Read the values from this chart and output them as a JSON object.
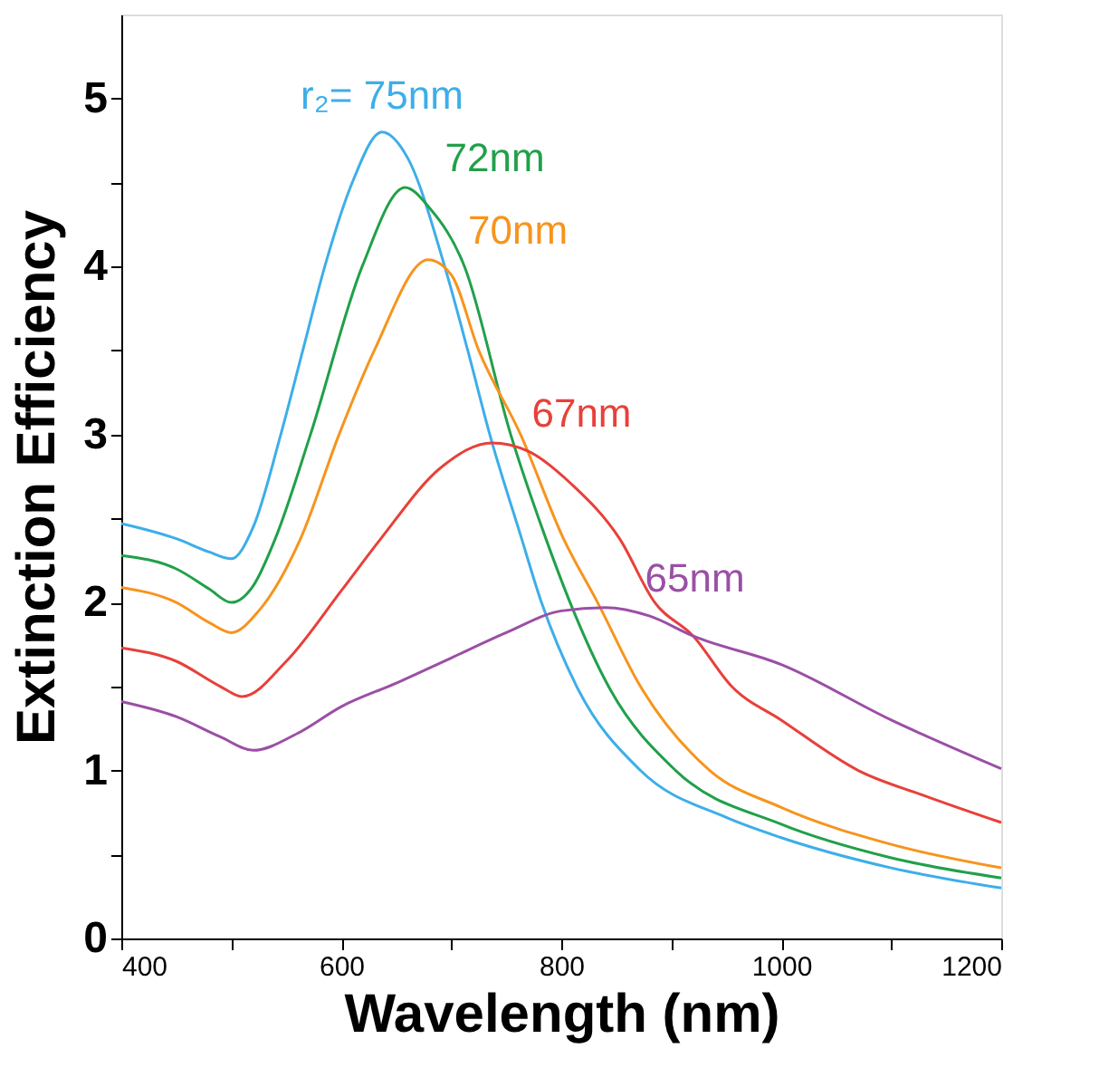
{
  "chart_data": {
    "type": "line",
    "xlabel": "Wavelength (nm)",
    "ylabel": "Extinction Efficiency",
    "xlim": [
      400,
      1200
    ],
    "ylim": [
      0,
      5.5
    ],
    "xticks": [
      400,
      {
        "value": 500,
        "label": null
      },
      600,
      {
        "value": 700,
        "label": null
      },
      800,
      {
        "value": 900,
        "label": null
      },
      1000,
      {
        "value": 1100,
        "label": null
      },
      1200
    ],
    "yticks": [
      0,
      {
        "value": 0.5,
        "label": null
      },
      1,
      {
        "value": 1.5,
        "label": null
      },
      2,
      {
        "value": 2.5,
        "label": null
      },
      3,
      {
        "value": 3.5,
        "label": null
      },
      4,
      {
        "value": 4.5,
        "label": null
      },
      5
    ],
    "grid": false,
    "legend": false,
    "marker": "none",
    "line_style": "solid",
    "series": [
      {
        "name": "r₂= 75nm",
        "color": "#3daee9",
        "x": [
          400,
          450,
          480,
          500,
          520,
          545,
          565,
          585,
          610,
          637,
          660,
          694,
          715,
          735,
          763,
          782,
          814,
          872,
          950,
          1000,
          1100,
          1200
        ],
        "values": [
          2.47,
          2.38,
          2.3,
          2.26,
          2.45,
          3.0,
          3.5,
          4.0,
          4.5,
          4.8,
          4.65,
          4.0,
          3.5,
          3.0,
          2.4,
          2.0,
          1.5,
          1.0,
          0.72,
          0.6,
          0.42,
          0.3
        ]
      },
      {
        "name": "72nm",
        "color": "#21a04a",
        "x": [
          400,
          450,
          480,
          500,
          520,
          540,
          572,
          619,
          658,
          680,
          712,
          754,
          786,
          808,
          843,
          904,
          1000,
          1100,
          1200
        ],
        "values": [
          2.28,
          2.2,
          2.08,
          2.0,
          2.1,
          2.38,
          3.0,
          4.0,
          4.47,
          4.35,
          4.0,
          3.0,
          2.38,
          2.0,
          1.5,
          1.0,
          0.68,
          0.48,
          0.36
        ]
      },
      {
        "name": "70nm",
        "color": "#f7941d",
        "x": [
          400,
          450,
          480,
          500,
          525,
          563,
          598,
          630,
          679,
          700,
          725,
          763,
          802,
          833,
          872,
          935,
          1000,
          1100,
          1200
        ],
        "values": [
          2.09,
          2.0,
          1.88,
          1.82,
          1.95,
          2.38,
          3.0,
          3.5,
          4.04,
          3.95,
          3.5,
          3.0,
          2.38,
          2.0,
          1.5,
          1.0,
          0.78,
          0.56,
          0.42
        ]
      },
      {
        "name": "67nm",
        "color": "#e8403a",
        "x": [
          400,
          450,
          490,
          510,
          550,
          600,
          636,
          690,
          737,
          770,
          810,
          853,
          885,
          920,
          955,
          1000,
          1070,
          1130,
          1200
        ],
        "values": [
          1.73,
          1.65,
          1.5,
          1.44,
          1.65,
          2.07,
          2.38,
          2.8,
          2.95,
          2.9,
          2.7,
          2.38,
          2.0,
          1.8,
          1.5,
          1.3,
          1.0,
          0.85,
          0.69
        ]
      },
      {
        "name": "65nm",
        "color": "#9b4fa5",
        "x": [
          400,
          450,
          490,
          520,
          560,
          600,
          650,
          700,
          750,
          800,
          840,
          880,
          920,
          1000,
          1100,
          1200
        ],
        "values": [
          1.41,
          1.32,
          1.2,
          1.12,
          1.22,
          1.38,
          1.52,
          1.67,
          1.82,
          1.95,
          1.97,
          1.92,
          1.8,
          1.63,
          1.3,
          1.01
        ]
      }
    ]
  }
}
